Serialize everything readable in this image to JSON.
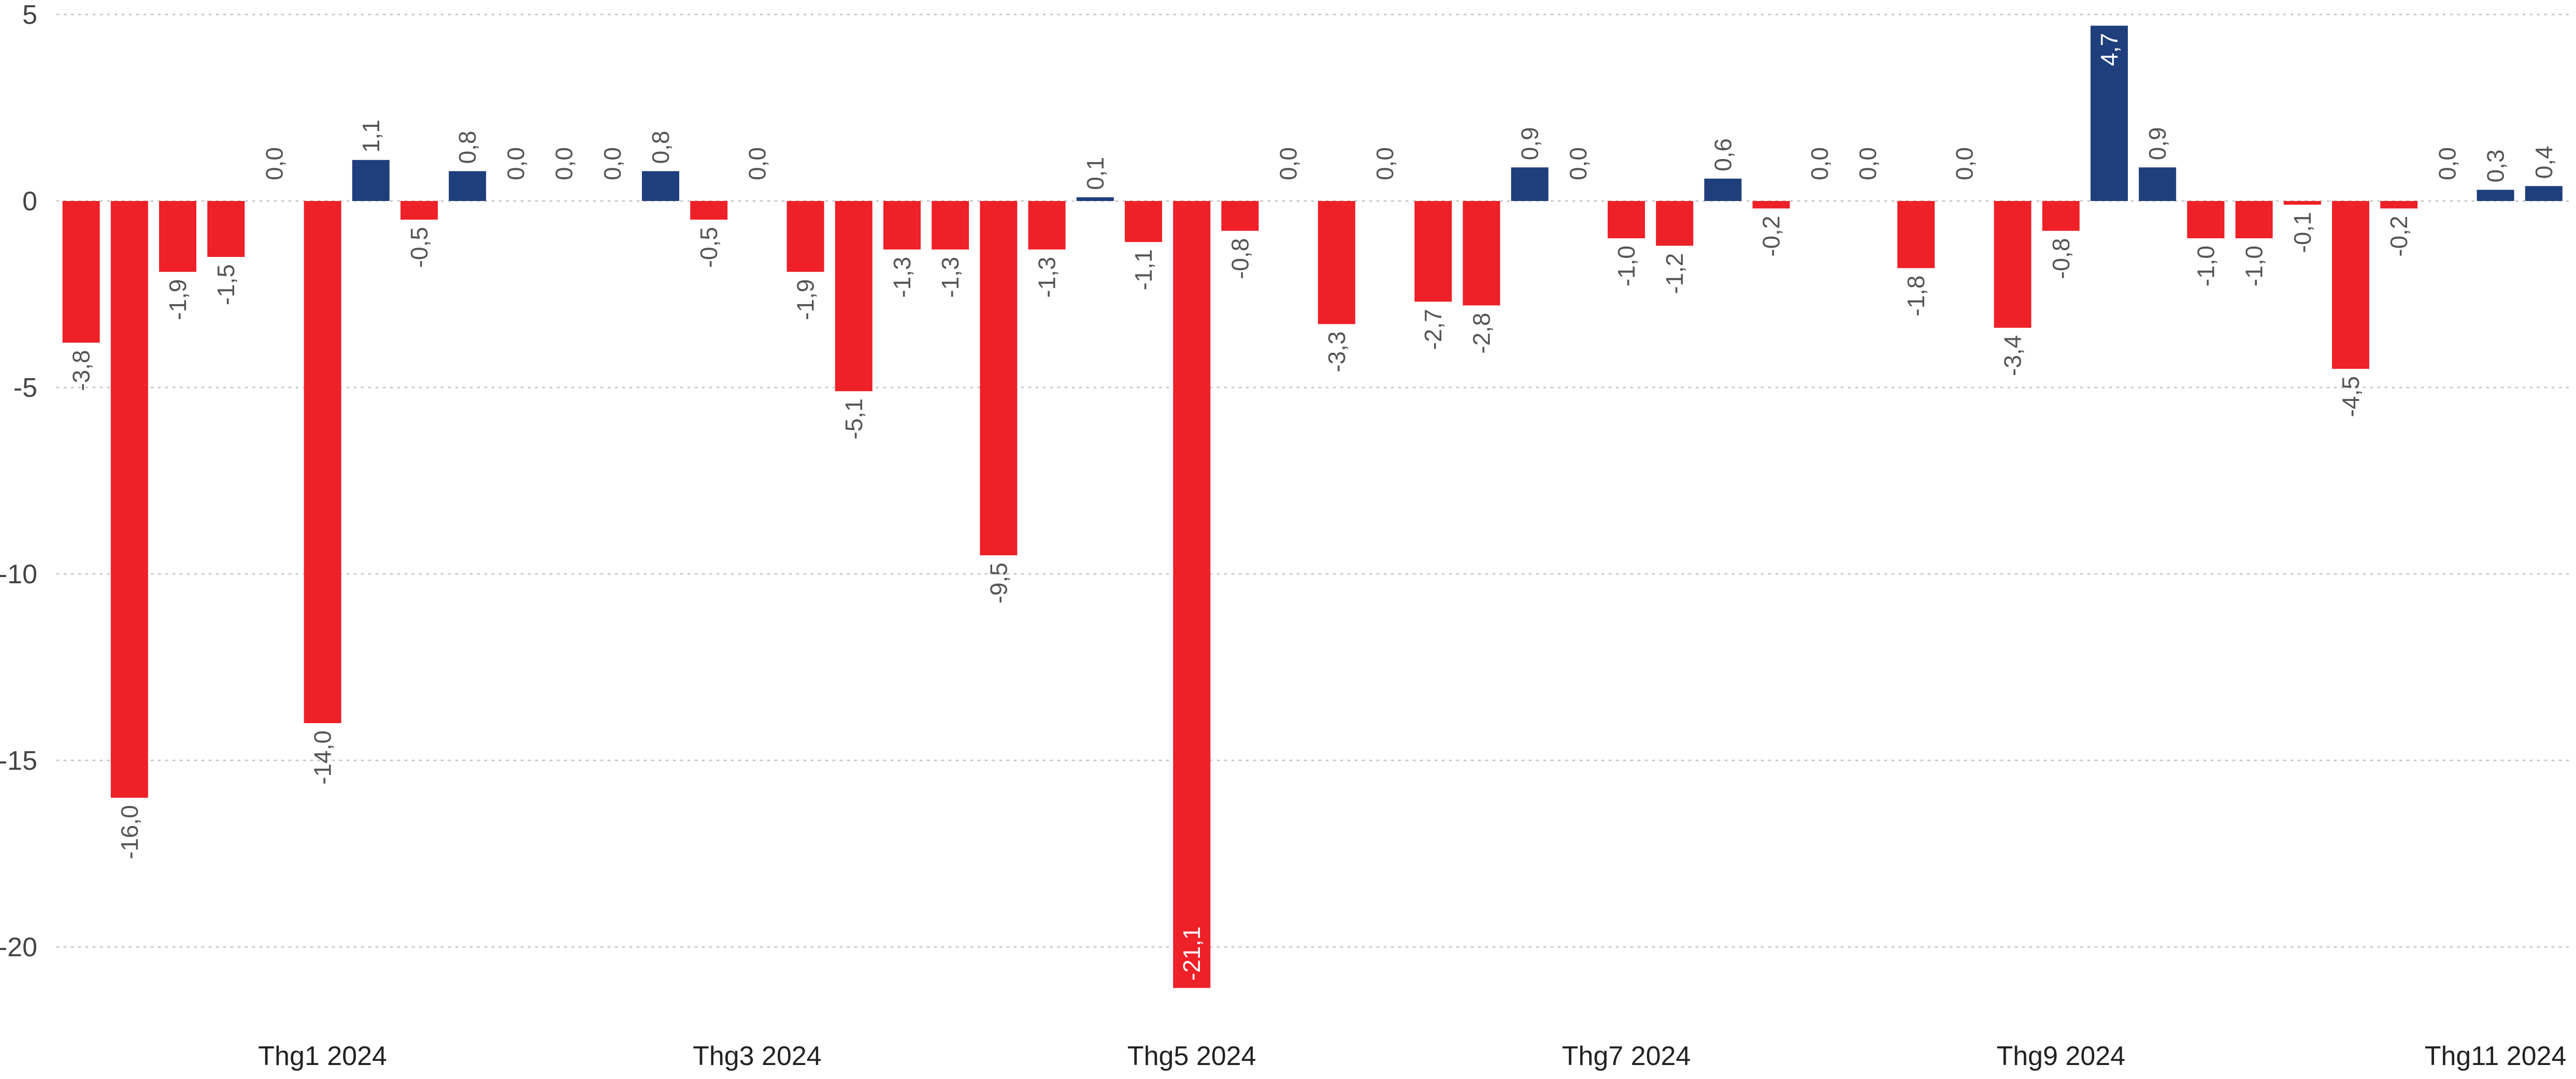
{
  "colors": {
    "negative": "#ee2028",
    "positive": "#1f3e7c",
    "label": "#555555",
    "inside_label": "#ffffff",
    "grid": "#c8c8c8",
    "axis_text": "#444444"
  },
  "chart_data": {
    "type": "bar",
    "title": "",
    "xlabel": "",
    "ylabel": "",
    "ylim": [
      -21.5,
      5
    ],
    "yticks": [
      5,
      0,
      -5,
      -10,
      -15,
      -20
    ],
    "ytick_labels": [
      "5",
      "0",
      "-5",
      "-10",
      "-15",
      "-20"
    ],
    "grid": true,
    "grid_style": "dotted",
    "x_labels": [
      {
        "text": "Thg1 2024",
        "index": 5
      },
      {
        "text": "Thg3 2024",
        "index": 14
      },
      {
        "text": "Thg5 2024",
        "index": 23
      },
      {
        "text": "Thg7 2024",
        "index": 32
      },
      {
        "text": "Thg9 2024",
        "index": 41
      },
      {
        "text": "Thg11 2024",
        "index": 50
      }
    ],
    "values": [
      -3.8,
      -16.0,
      -1.9,
      -1.5,
      0.0,
      -14.0,
      1.1,
      -0.5,
      0.8,
      0.0,
      0.0,
      0.0,
      0.8,
      -0.5,
      0.0,
      -1.9,
      -5.1,
      -1.3,
      -1.3,
      -9.5,
      -1.3,
      0.1,
      -1.1,
      -21.1,
      -0.8,
      0.0,
      -3.3,
      0.0,
      -2.7,
      -2.8,
      0.9,
      0.0,
      -1.0,
      -1.2,
      0.6,
      -0.2,
      0.0,
      0.0,
      -1.8,
      0.0,
      -3.4,
      -0.8,
      4.7,
      0.9,
      -1.0,
      -1.0,
      -0.1,
      -4.5,
      -0.2,
      0.0,
      0.3,
      0.4
    ],
    "labels": [
      "-3,8",
      "-16,0",
      "-1,9",
      "-1,5",
      "0,0",
      "-14,0",
      "1,1",
      "-0,5",
      "0,8",
      "0,0",
      "0,0",
      "0,0",
      "0,8",
      "-0,5",
      "0,0",
      "-1,9",
      "-5,1",
      "-1,3",
      "-1,3",
      "-9,5",
      "-1,3",
      "0,1",
      "-1,1",
      "-21,1",
      "-0,8",
      "0,0",
      "-3,3",
      "0,0",
      "-2,7",
      "-2,8",
      "0,9",
      "0,0",
      "-1,0",
      "-1,2",
      "0,6",
      "-0,2",
      "0,0",
      "0,0",
      "-1,8",
      "0,0",
      "-3,4",
      "-0,8",
      "4,7",
      "0,9",
      "-1,0",
      "-1,0",
      "-0,1",
      "-4,5",
      "-0,2",
      "0,0",
      "0,3",
      "0,4"
    ],
    "inside_label_indices": [
      23,
      42
    ]
  }
}
